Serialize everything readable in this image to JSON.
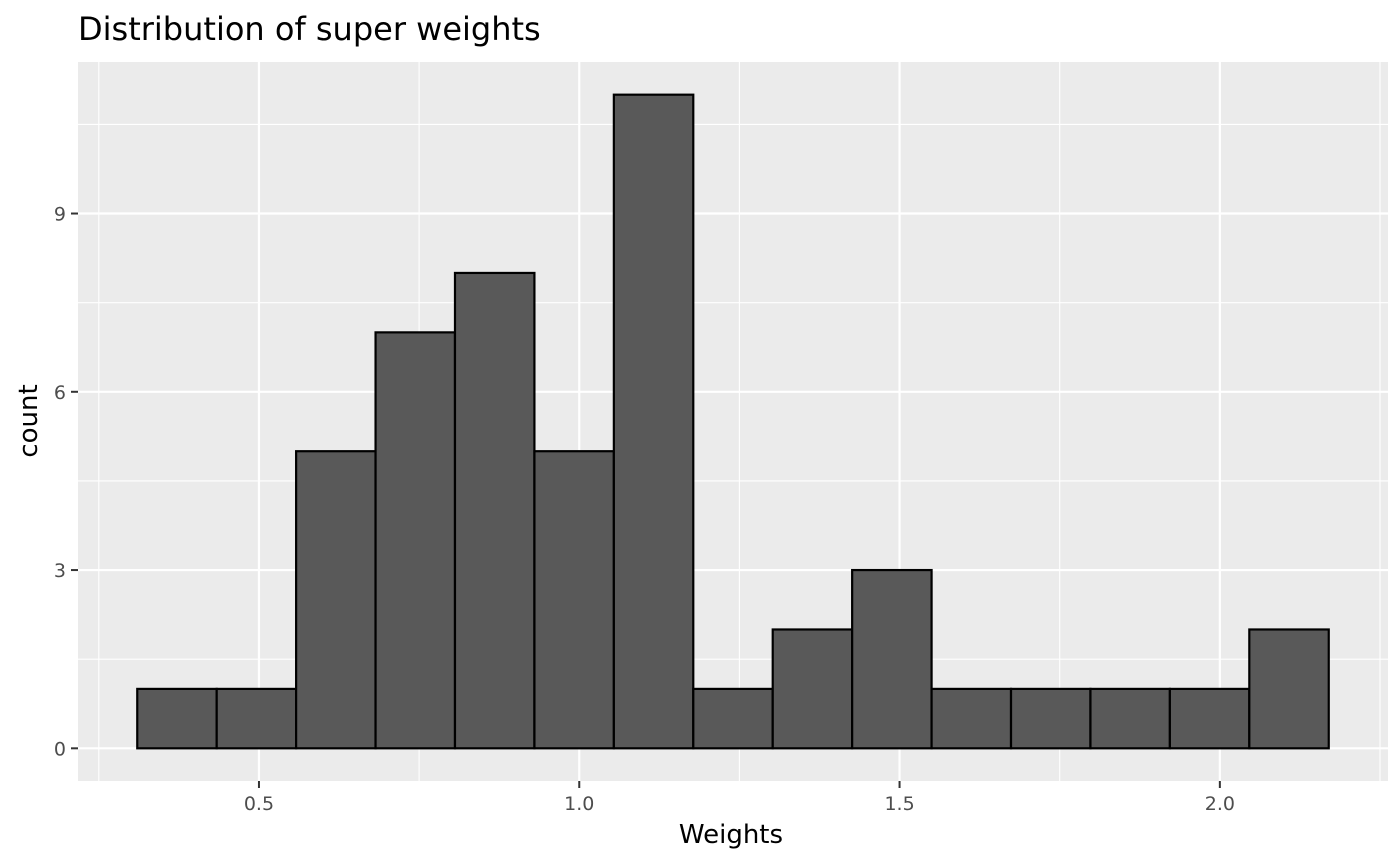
{
  "chart_data": {
    "type": "bar",
    "subtype": "histogram",
    "title": "Distribution of super weights",
    "xlabel": "Weights",
    "ylabel": "count",
    "bins": [
      {
        "x0": 0.31,
        "x1": 0.434,
        "count": 1
      },
      {
        "x0": 0.434,
        "x1": 0.558,
        "count": 1
      },
      {
        "x0": 0.558,
        "x1": 0.682,
        "count": 5
      },
      {
        "x0": 0.682,
        "x1": 0.806,
        "count": 7
      },
      {
        "x0": 0.806,
        "x1": 0.93,
        "count": 8
      },
      {
        "x0": 0.93,
        "x1": 1.054,
        "count": 5
      },
      {
        "x0": 1.054,
        "x1": 1.178,
        "count": 11
      },
      {
        "x0": 1.178,
        "x1": 1.302,
        "count": 1
      },
      {
        "x0": 1.302,
        "x1": 1.426,
        "count": 2
      },
      {
        "x0": 1.426,
        "x1": 1.55,
        "count": 3
      },
      {
        "x0": 1.55,
        "x1": 1.674,
        "count": 1
      },
      {
        "x0": 1.674,
        "x1": 1.798,
        "count": 1
      },
      {
        "x0": 1.798,
        "x1": 1.922,
        "count": 1
      },
      {
        "x0": 1.922,
        "x1": 2.046,
        "count": 1
      },
      {
        "x0": 2.046,
        "x1": 2.17,
        "count": 2
      }
    ],
    "xlim": [
      0.2175,
      2.2625
    ],
    "ylim": [
      -0.55,
      11.55
    ],
    "x_ticks": [
      0.5,
      1.0,
      1.5,
      2.0
    ],
    "x_tick_labels": [
      "0.5",
      "1.0",
      "1.5",
      "2.0"
    ],
    "x_minor_ticks": [
      0.25,
      0.75,
      1.25,
      1.75,
      2.25
    ],
    "y_ticks": [
      0,
      3,
      6,
      9
    ],
    "y_tick_labels": [
      "0",
      "3",
      "6",
      "9"
    ],
    "y_minor_ticks": [
      1.5,
      4.5,
      7.5,
      10.5
    ],
    "grid": true,
    "legend": "none",
    "colors": {
      "panel_background": "#EBEBEB",
      "grid_line": "#FFFFFF",
      "bar_fill": "#595959",
      "bar_outline": "#000000",
      "tick_mark": "#333333",
      "tick_label": "#4D4D4D"
    }
  }
}
